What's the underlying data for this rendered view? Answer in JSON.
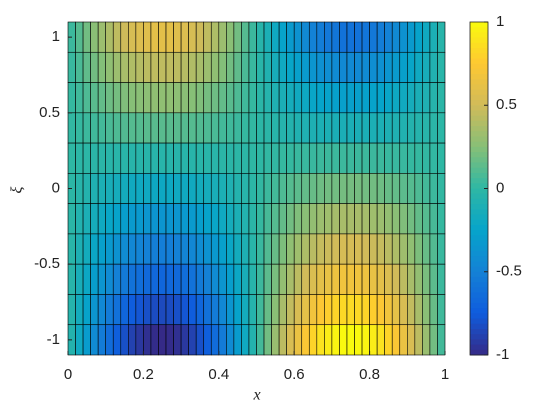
{
  "chart_data": {
    "type": "heatmap",
    "xlabel": "x",
    "ylabel": "ξ",
    "x": [
      0.01,
      0.03,
      0.05,
      0.07,
      0.09,
      0.11,
      0.13,
      0.15,
      0.17,
      0.19,
      0.21,
      0.23,
      0.25,
      0.27,
      0.29,
      0.31,
      0.33,
      0.35,
      0.37,
      0.39,
      0.41,
      0.43,
      0.45,
      0.47,
      0.49,
      0.51,
      0.53,
      0.55,
      0.57,
      0.59,
      0.61,
      0.63,
      0.65,
      0.67,
      0.69,
      0.71,
      0.73,
      0.75,
      0.77,
      0.79,
      0.81,
      0.83,
      0.85,
      0.87,
      0.89,
      0.91,
      0.93,
      0.95,
      0.97,
      0.99
    ],
    "y": [
      1,
      0.8,
      0.6,
      0.4,
      0.2,
      0,
      -0.2,
      -0.4,
      -0.6,
      -0.8,
      -1
    ],
    "z": [
      [
        0.04,
        0.11,
        0.19,
        0.26,
        0.32,
        0.38,
        0.44,
        0.49,
        0.53,
        0.56,
        0.58,
        0.6,
        0.6,
        0.6,
        0.58,
        0.56,
        0.53,
        0.49,
        0.44,
        0.38,
        0.32,
        0.26,
        0.19,
        0.11,
        0.04,
        -0.04,
        -0.11,
        -0.19,
        -0.26,
        -0.32,
        -0.38,
        -0.44,
        -0.49,
        -0.53,
        -0.56,
        -0.58,
        -0.6,
        -0.6,
        -0.6,
        -0.58,
        -0.56,
        -0.53,
        -0.49,
        -0.44,
        -0.38,
        -0.32,
        -0.26,
        -0.19,
        -0.11,
        -0.04
      ],
      [
        0.03,
        0.08,
        0.14,
        0.19,
        0.24,
        0.28,
        0.32,
        0.36,
        0.39,
        0.41,
        0.43,
        0.44,
        0.44,
        0.44,
        0.43,
        0.41,
        0.39,
        0.36,
        0.32,
        0.28,
        0.24,
        0.19,
        0.14,
        0.08,
        0.03,
        -0.03,
        -0.08,
        -0.14,
        -0.19,
        -0.24,
        -0.28,
        -0.32,
        -0.36,
        -0.39,
        -0.41,
        -0.43,
        -0.44,
        -0.44,
        -0.44,
        -0.43,
        -0.41,
        -0.39,
        -0.36,
        -0.32,
        -0.28,
        -0.24,
        -0.19,
        -0.14,
        -0.08,
        -0.03
      ],
      [
        0.02,
        0.05,
        0.09,
        0.12,
        0.15,
        0.18,
        0.2,
        0.23,
        0.25,
        0.26,
        0.27,
        0.28,
        0.28,
        0.28,
        0.27,
        0.26,
        0.25,
        0.23,
        0.2,
        0.18,
        0.15,
        0.12,
        0.09,
        0.05,
        0.02,
        -0.02,
        -0.05,
        -0.09,
        -0.12,
        -0.15,
        -0.18,
        -0.2,
        -0.23,
        -0.25,
        -0.26,
        -0.27,
        -0.28,
        -0.28,
        -0.28,
        -0.27,
        -0.26,
        -0.25,
        -0.23,
        -0.2,
        -0.18,
        -0.15,
        -0.12,
        -0.09,
        -0.05,
        -0.02
      ],
      [
        0.01,
        0.02,
        0.04,
        0.05,
        0.06,
        0.08,
        0.09,
        0.1,
        0.11,
        0.11,
        0.12,
        0.12,
        0.12,
        0.12,
        0.12,
        0.11,
        0.11,
        0.1,
        0.09,
        0.08,
        0.06,
        0.05,
        0.04,
        0.02,
        0.01,
        -0.01,
        -0.02,
        -0.04,
        -0.05,
        -0.06,
        -0.08,
        -0.09,
        -0.1,
        -0.11,
        -0.11,
        -0.12,
        -0.12,
        -0.12,
        -0.12,
        -0.12,
        -0.11,
        -0.11,
        -0.1,
        -0.09,
        -0.08,
        -0.06,
        -0.05,
        -0.04,
        -0.02,
        -0.01
      ],
      [
        0,
        -0.01,
        -0.01,
        -0.02,
        -0.02,
        -0.03,
        -0.03,
        -0.03,
        -0.04,
        -0.04,
        -0.04,
        -0.04,
        -0.04,
        -0.04,
        -0.04,
        -0.04,
        -0.04,
        -0.03,
        -0.03,
        -0.03,
        -0.02,
        -0.02,
        -0.01,
        -0.01,
        0,
        0,
        0.01,
        0.01,
        0.02,
        0.02,
        0.03,
        0.03,
        0.03,
        0.04,
        0.04,
        0.04,
        0.04,
        0.04,
        0.04,
        0.04,
        0.04,
        0.04,
        0.03,
        0.03,
        0.03,
        0.02,
        0.02,
        0.01,
        0.01,
        0
      ],
      [
        -0.01,
        -0.04,
        -0.06,
        -0.09,
        -0.11,
        -0.13,
        -0.15,
        -0.16,
        -0.18,
        -0.19,
        -0.19,
        -0.2,
        -0.2,
        -0.2,
        -0.19,
        -0.19,
        -0.18,
        -0.16,
        -0.15,
        -0.13,
        -0.11,
        -0.09,
        -0.06,
        -0.04,
        -0.01,
        0.01,
        0.04,
        0.06,
        0.09,
        0.11,
        0.13,
        0.15,
        0.16,
        0.18,
        0.19,
        0.19,
        0.2,
        0.2,
        0.2,
        0.19,
        0.19,
        0.18,
        0.16,
        0.15,
        0.13,
        0.11,
        0.09,
        0.06,
        0.04,
        0.01
      ],
      [
        -0.02,
        -0.07,
        -0.11,
        -0.15,
        -0.19,
        -0.23,
        -0.26,
        -0.29,
        -0.32,
        -0.33,
        -0.35,
        -0.36,
        -0.36,
        -0.36,
        -0.35,
        -0.33,
        -0.32,
        -0.29,
        -0.26,
        -0.23,
        -0.19,
        -0.15,
        -0.11,
        -0.07,
        -0.02,
        0.02,
        0.07,
        0.11,
        0.15,
        0.19,
        0.23,
        0.26,
        0.29,
        0.32,
        0.33,
        0.35,
        0.36,
        0.36,
        0.36,
        0.35,
        0.33,
        0.32,
        0.29,
        0.26,
        0.23,
        0.19,
        0.15,
        0.11,
        0.07,
        0.02
      ],
      [
        -0.03,
        -0.1,
        -0.16,
        -0.22,
        -0.28,
        -0.33,
        -0.38,
        -0.42,
        -0.46,
        -0.48,
        -0.5,
        -0.52,
        -0.52,
        -0.52,
        -0.5,
        -0.48,
        -0.46,
        -0.42,
        -0.38,
        -0.33,
        -0.28,
        -0.22,
        -0.16,
        -0.1,
        -0.03,
        0.03,
        0.1,
        0.16,
        0.22,
        0.28,
        0.33,
        0.38,
        0.42,
        0.46,
        0.48,
        0.5,
        0.52,
        0.52,
        0.52,
        0.5,
        0.48,
        0.46,
        0.42,
        0.38,
        0.33,
        0.28,
        0.22,
        0.16,
        0.1,
        0.03
      ],
      [
        -0.04,
        -0.13,
        -0.21,
        -0.29,
        -0.36,
        -0.43,
        -0.5,
        -0.55,
        -0.6,
        -0.63,
        -0.66,
        -0.67,
        -0.68,
        -0.67,
        -0.66,
        -0.63,
        -0.6,
        -0.55,
        -0.5,
        -0.43,
        -0.36,
        -0.29,
        -0.21,
        -0.13,
        -0.04,
        0.04,
        0.13,
        0.21,
        0.29,
        0.36,
        0.43,
        0.5,
        0.55,
        0.6,
        0.63,
        0.66,
        0.67,
        0.68,
        0.67,
        0.66,
        0.63,
        0.6,
        0.55,
        0.5,
        0.43,
        0.36,
        0.29,
        0.21,
        0.13,
        0.04
      ],
      [
        -0.05,
        -0.16,
        -0.26,
        -0.36,
        -0.45,
        -0.54,
        -0.61,
        -0.68,
        -0.74,
        -0.78,
        -0.81,
        -0.83,
        -0.84,
        -0.83,
        -0.81,
        -0.78,
        -0.74,
        -0.68,
        -0.61,
        -0.54,
        -0.45,
        -0.36,
        -0.26,
        -0.16,
        -0.05,
        0.05,
        0.16,
        0.26,
        0.36,
        0.45,
        0.54,
        0.61,
        0.68,
        0.74,
        0.78,
        0.81,
        0.83,
        0.84,
        0.83,
        0.81,
        0.78,
        0.74,
        0.68,
        0.61,
        0.54,
        0.45,
        0.36,
        0.26,
        0.16,
        0.05
      ],
      [
        -0.06,
        -0.19,
        -0.31,
        -0.43,
        -0.54,
        -0.64,
        -0.73,
        -0.81,
        -0.88,
        -0.93,
        -0.97,
        -0.99,
        -1,
        -0.99,
        -0.97,
        -0.93,
        -0.88,
        -0.81,
        -0.73,
        -0.64,
        -0.54,
        -0.43,
        -0.31,
        -0.19,
        -0.06,
        0.06,
        0.19,
        0.31,
        0.43,
        0.54,
        0.64,
        0.73,
        0.81,
        0.88,
        0.93,
        0.97,
        0.99,
        1,
        0.99,
        0.97,
        0.93,
        0.88,
        0.81,
        0.73,
        0.64,
        0.54,
        0.43,
        0.31,
        0.19,
        0.06
      ]
    ],
    "xlim": [
      0,
      1
    ],
    "xticks": [
      0,
      0.2,
      0.4,
      0.6,
      0.8,
      1
    ],
    "ylim": [
      -1.1,
      1.1
    ],
    "yticks": [
      -1,
      -0.5,
      0,
      0.5,
      1
    ],
    "clim": [
      -1,
      1
    ],
    "cticks": [
      -1,
      -0.5,
      0,
      0.5,
      1
    ],
    "colormap": [
      "#352a87",
      "#0f5cdd",
      "#1481d6",
      "#06a4ca",
      "#2eb7a4",
      "#87bf77",
      "#d1bb59",
      "#fec832",
      "#f9fb0e"
    ]
  }
}
